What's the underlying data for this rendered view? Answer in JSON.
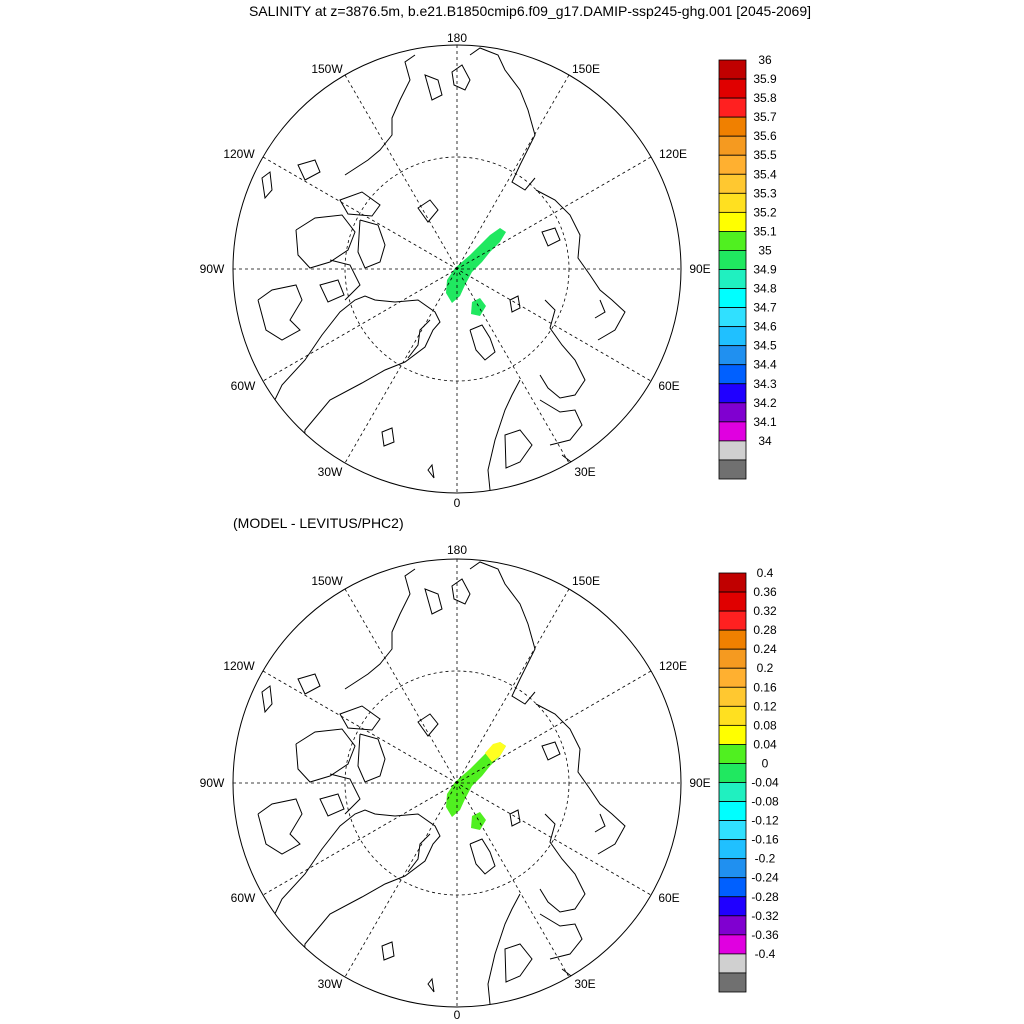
{
  "title": "SALINITY at z=3876.5m, b.e21.B1850cmip6.f09_g17.DAMIP-ssp245-ghg.001 [2045-2069]",
  "panels": [
    {
      "name": "salinity",
      "subtitle": "",
      "longitude_labels": {
        "lon_180": "180",
        "lon_150E": "150E",
        "lon_120E": "120E",
        "lon_90E": "90E",
        "lon_60E": "60E",
        "lon_30E": "30E",
        "lon_0": "0",
        "lon_30W": "30W",
        "lon_60W": "60W",
        "lon_90W": "90W",
        "lon_120W": "120W",
        "lon_150W": "150W"
      },
      "colorbar_labels": [
        "36",
        "35.9",
        "35.8",
        "35.7",
        "35.6",
        "35.5",
        "35.4",
        "35.3",
        "35.2",
        "35.1",
        "35",
        "34.9",
        "34.8",
        "34.7",
        "34.6",
        "34.5",
        "34.4",
        "34.3",
        "34.2",
        "34.1",
        "34"
      ],
      "colorbar_colors": [
        "#c00000",
        "#e00000",
        "#ff2020",
        "#f08000",
        "#f59a20",
        "#ffb030",
        "#ffc830",
        "#ffe020",
        "#ffff00",
        "#50f020",
        "#20e860",
        "#20f0c0",
        "#00ffff",
        "#30e0ff",
        "#20c0ff",
        "#2090f0",
        "#0060ff",
        "#2000ff",
        "#8000d0",
        "#e000e0",
        "#d0d0d0",
        "#707070"
      ],
      "field_color": "#20e860"
    },
    {
      "name": "difference",
      "subtitle": "(MODEL - LEVITUS/PHC2)",
      "longitude_labels": {
        "lon_180": "180",
        "lon_150E": "150E",
        "lon_120E": "120E",
        "lon_90E": "90E",
        "lon_60E": "60E",
        "lon_30E": "30E",
        "lon_0": "0",
        "lon_30W": "30W",
        "lon_60W": "60W",
        "lon_90W": "90W",
        "lon_120W": "120W",
        "lon_150W": "150W"
      },
      "colorbar_labels": [
        "0.4",
        "0.36",
        "0.32",
        "0.28",
        "0.24",
        "0.2",
        "0.16",
        "0.12",
        "0.08",
        "0.04",
        "0",
        "-0.04",
        "-0.08",
        "-0.12",
        "-0.16",
        "-0.2",
        "-0.24",
        "-0.28",
        "-0.32",
        "-0.36",
        "-0.4"
      ],
      "colorbar_colors": [
        "#c00000",
        "#e00000",
        "#ff2020",
        "#f08000",
        "#f59a20",
        "#ffb030",
        "#ffc830",
        "#ffe020",
        "#ffff00",
        "#50f020",
        "#20e860",
        "#20f0c0",
        "#00ffff",
        "#30e0ff",
        "#20c0ff",
        "#2090f0",
        "#0060ff",
        "#2000ff",
        "#8000d0",
        "#e000e0",
        "#d0d0d0",
        "#707070"
      ],
      "field_color": "#50f020",
      "highlight_color": "#ffff20"
    }
  ]
}
